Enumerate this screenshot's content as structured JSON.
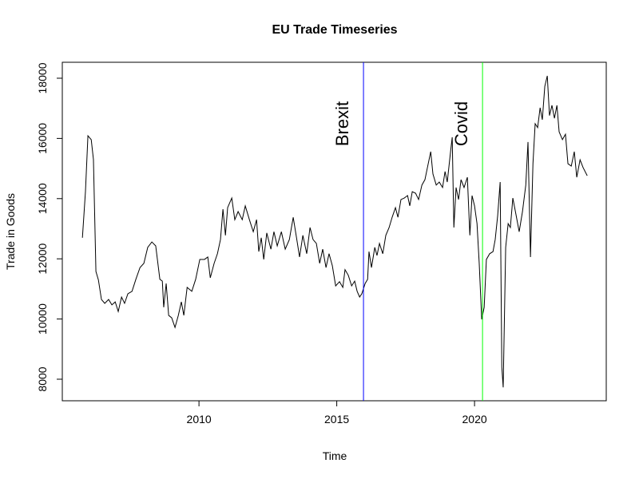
{
  "chart_data": {
    "type": "line",
    "title": "EU Trade Timeseries",
    "x_label": "Time",
    "y_label": "Trade in Goods",
    "xlim": [
      2005.04,
      2024.78
    ],
    "ylim": [
      7284,
      18530
    ],
    "xticks": [
      2010,
      2015,
      2020
    ],
    "yticks": [
      8000,
      10000,
      12000,
      14000,
      16000,
      18000
    ],
    "x": [
      2005.77,
      2005.88,
      2005.97,
      2006.09,
      2006.17,
      2006.26,
      2006.35,
      2006.46,
      2006.58,
      2006.72,
      2006.84,
      2006.96,
      2007.07,
      2007.19,
      2007.3,
      2007.42,
      2007.57,
      2007.71,
      2007.86,
      2008.0,
      2008.14,
      2008.29,
      2008.43,
      2008.58,
      2008.67,
      2008.72,
      2008.81,
      2008.9,
      2009.01,
      2009.13,
      2009.25,
      2009.36,
      2009.45,
      2009.57,
      2009.74,
      2009.88,
      2010.03,
      2010.2,
      2010.32,
      2010.41,
      2010.55,
      2010.67,
      2010.78,
      2010.87,
      2010.96,
      2011.04,
      2011.19,
      2011.3,
      2011.42,
      2011.57,
      2011.68,
      2011.83,
      2011.97,
      2012.09,
      2012.17,
      2012.26,
      2012.35,
      2012.46,
      2012.61,
      2012.72,
      2012.84,
      2012.99,
      2013.13,
      2013.28,
      2013.42,
      2013.54,
      2013.65,
      2013.77,
      2013.91,
      2014.03,
      2014.14,
      2014.26,
      2014.38,
      2014.49,
      2014.61,
      2014.72,
      2014.84,
      2014.96,
      2015.1,
      2015.22,
      2015.3,
      2015.42,
      2015.54,
      2015.65,
      2015.74,
      2015.83,
      2015.91,
      2016.03,
      2016.12,
      2016.17,
      2016.26,
      2016.38,
      2016.46,
      2016.55,
      2016.67,
      2016.78,
      2016.9,
      2017.01,
      2017.13,
      2017.22,
      2017.33,
      2017.45,
      2017.57,
      2017.65,
      2017.74,
      2017.86,
      2017.97,
      2018.09,
      2018.2,
      2018.29,
      2018.41,
      2018.49,
      2018.61,
      2018.72,
      2018.84,
      2018.93,
      2019.01,
      2019.13,
      2019.19,
      2019.25,
      2019.33,
      2019.42,
      2019.51,
      2019.62,
      2019.74,
      2019.83,
      2019.91,
      2020.0,
      2020.09,
      2020.17,
      2020.26,
      2020.35,
      2020.43,
      2020.55,
      2020.67,
      2020.75,
      2020.84,
      2020.93,
      2020.99,
      2021.04,
      2021.13,
      2021.22,
      2021.3,
      2021.39,
      2021.51,
      2021.62,
      2021.74,
      2021.86,
      2021.94,
      2022.03,
      2022.12,
      2022.2,
      2022.29,
      2022.38,
      2022.46,
      2022.55,
      2022.64,
      2022.72,
      2022.81,
      2022.9,
      2022.99,
      2023.07,
      2023.19,
      2023.3,
      2023.39,
      2023.51,
      2023.62,
      2023.71,
      2023.83,
      2023.94,
      2024.09
    ],
    "series": [
      {
        "name": "Trade in Goods",
        "color": "#000000",
        "values": [
          12700,
          14230,
          16090,
          15960,
          15300,
          11580,
          11300,
          10650,
          10520,
          10650,
          10470,
          10570,
          10250,
          10730,
          10520,
          10840,
          10920,
          11320,
          11710,
          11850,
          12380,
          12560,
          12430,
          11320,
          11260,
          10390,
          11180,
          10120,
          10040,
          9720,
          10120,
          10570,
          10120,
          11050,
          10920,
          11320,
          11980,
          11980,
          12060,
          11370,
          11850,
          12170,
          12640,
          13650,
          12780,
          13700,
          14020,
          13300,
          13570,
          13300,
          13760,
          13300,
          12900,
          13300,
          12240,
          12700,
          11980,
          12860,
          12320,
          12900,
          12430,
          12900,
          12320,
          12640,
          13380,
          12700,
          12060,
          12780,
          12170,
          13040,
          12640,
          12510,
          11850,
          12320,
          11710,
          12170,
          11770,
          11100,
          11240,
          11050,
          11640,
          11450,
          11100,
          11260,
          10920,
          10730,
          10840,
          11180,
          11320,
          12240,
          11710,
          12380,
          12110,
          12510,
          12170,
          12780,
          13040,
          13380,
          13700,
          13380,
          13970,
          14020,
          14100,
          13760,
          14230,
          14180,
          13970,
          14450,
          14630,
          15030,
          15560,
          14820,
          14450,
          14550,
          14370,
          14900,
          14550,
          15560,
          16040,
          13040,
          14370,
          13970,
          14630,
          14370,
          14710,
          12780,
          14100,
          13760,
          13170,
          11850,
          9990,
          10390,
          11980,
          12170,
          12240,
          12640,
          13440,
          14550,
          8400,
          7730,
          12380,
          13170,
          13040,
          14020,
          13440,
          12900,
          13570,
          14450,
          15880,
          12060,
          15160,
          16490,
          16360,
          17020,
          16620,
          17730,
          18080,
          16760,
          17100,
          16670,
          17100,
          16220,
          15960,
          16140,
          15160,
          15080,
          15560,
          14710,
          15290,
          15030,
          14760
        ]
      }
    ],
    "annotations": [
      {
        "text": "Brexit",
        "x": 2015.97,
        "color": "#0000ff"
      },
      {
        "text": "Covid",
        "x": 2020.29,
        "color": "#00ff00"
      }
    ]
  }
}
